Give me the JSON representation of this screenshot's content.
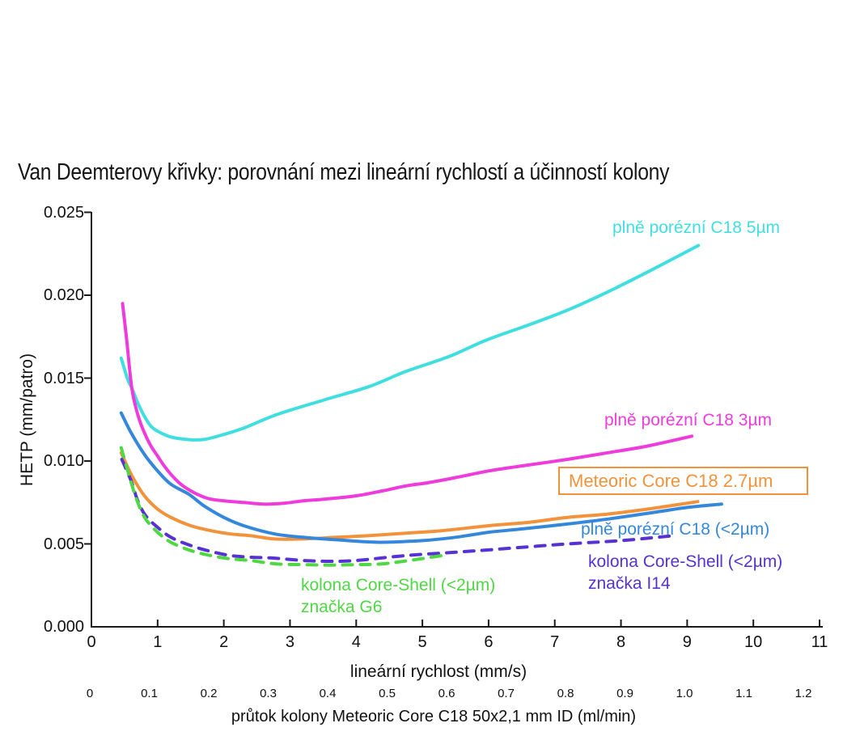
{
  "chart_data": {
    "type": "line",
    "title": "Van Deemterovy křivky: porovnání mezi lineární rychlostí a účinností kolony",
    "colors": {
      "axis": "#1a1a1a",
      "text": "#111111"
    },
    "x_axis": {
      "label": "lineární rychlost (mm/s)",
      "range": [
        0,
        11
      ],
      "ticks": [
        {
          "label": "0",
          "value": 0
        },
        {
          "label": "1",
          "value": 1
        },
        {
          "label": "2",
          "value": 2
        },
        {
          "label": "3",
          "value": 3
        },
        {
          "label": "4",
          "value": 4
        },
        {
          "label": "5",
          "value": 5
        },
        {
          "label": "6",
          "value": 6
        },
        {
          "label": "7",
          "value": 7
        },
        {
          "label": "8",
          "value": 8
        },
        {
          "label": "9",
          "value": 9
        },
        {
          "label": "10",
          "value": 10
        },
        {
          "label": "11",
          "value": 11
        }
      ]
    },
    "y_axis": {
      "label": "HETP (mm/patro)",
      "range": [
        0,
        0.025
      ],
      "ticks": [
        {
          "label": "0.000",
          "value": 0
        },
        {
          "label": "0.005",
          "value": 0.005
        },
        {
          "label": "0.010",
          "value": 0.01
        },
        {
          "label": "0.015",
          "value": 0.015
        },
        {
          "label": "0.020",
          "value": 0.02
        },
        {
          "label": "0.025",
          "value": 0.025
        }
      ]
    },
    "x2_axis": {
      "label": "průtok kolony Meteoric Core C18 50x2,1 mm ID (ml/min)",
      "range": [
        0,
        1.2
      ],
      "ticks": [
        {
          "label": "0",
          "value": 0
        },
        {
          "label": "0.1",
          "value": 0.1
        },
        {
          "label": "0.2",
          "value": 0.2
        },
        {
          "label": "0.3",
          "value": 0.3
        },
        {
          "label": "0.4",
          "value": 0.4
        },
        {
          "label": "0.5",
          "value": 0.5
        },
        {
          "label": "0.6",
          "value": 0.6
        },
        {
          "label": "0.7",
          "value": 0.7
        },
        {
          "label": "0.8",
          "value": 0.8
        },
        {
          "label": "0.9",
          "value": 0.9
        },
        {
          "label": "1.0",
          "value": 1.0
        },
        {
          "label": "1.1",
          "value": 1.1
        },
        {
          "label": "1.2",
          "value": 1.2
        }
      ]
    },
    "series": [
      {
        "id": "c18_5um",
        "name": "plně porézní C18 5µm",
        "color": "#41DEE0",
        "dash": false,
        "points": [
          [
            0.45,
            0.0162
          ],
          [
            0.55,
            0.0149
          ],
          [
            0.61,
            0.0144
          ],
          [
            0.7,
            0.0135
          ],
          [
            0.8,
            0.0127
          ],
          [
            0.9,
            0.0121
          ],
          [
            1.0,
            0.0118
          ],
          [
            1.2,
            0.01145
          ],
          [
            1.45,
            0.0113
          ],
          [
            1.7,
            0.0113
          ],
          [
            2.0,
            0.0116
          ],
          [
            2.31,
            0.012
          ],
          [
            2.8,
            0.0128
          ],
          [
            3.53,
            0.0137
          ],
          [
            4.2,
            0.0145
          ],
          [
            4.75,
            0.0154
          ],
          [
            5.4,
            0.0163
          ],
          [
            5.97,
            0.0173
          ],
          [
            6.6,
            0.0182
          ],
          [
            7.19,
            0.0191
          ],
          [
            7.8,
            0.0202
          ],
          [
            8.5,
            0.0216
          ],
          [
            9.17,
            0.023
          ]
        ]
      },
      {
        "id": "c18_3um",
        "name": "plně porézní C18 3µm",
        "color": "#EF3BDB",
        "dash": false,
        "points": [
          [
            0.47,
            0.0195
          ],
          [
            0.53,
            0.0174
          ],
          [
            0.61,
            0.0144
          ],
          [
            0.7,
            0.0128
          ],
          [
            0.8,
            0.0117
          ],
          [
            0.9,
            0.0109
          ],
          [
            1.0,
            0.0103
          ],
          [
            1.1,
            0.0097
          ],
          [
            1.2,
            0.0092
          ],
          [
            1.35,
            0.0086
          ],
          [
            1.5,
            0.0082
          ],
          [
            1.65,
            0.0079
          ],
          [
            1.8,
            0.0077
          ],
          [
            2.0,
            0.0076
          ],
          [
            2.3,
            0.0075
          ],
          [
            2.6,
            0.0074
          ],
          [
            2.9,
            0.00745
          ],
          [
            3.2,
            0.0076
          ],
          [
            3.53,
            0.0077
          ],
          [
            4.0,
            0.0079
          ],
          [
            4.4,
            0.0082
          ],
          [
            4.75,
            0.0085
          ],
          [
            5.1,
            0.0087
          ],
          [
            5.5,
            0.009
          ],
          [
            6.0,
            0.0094
          ],
          [
            6.5,
            0.0097
          ],
          [
            7.19,
            0.0101
          ],
          [
            7.8,
            0.0105
          ],
          [
            8.4,
            0.0109
          ],
          [
            9.07,
            0.0115
          ]
        ]
      },
      {
        "id": "meteoric_core",
        "name": "Meteoric Core C18 2.7µm",
        "color": "#F2923B",
        "dash": false,
        "points": [
          [
            0.45,
            0.0105
          ],
          [
            0.6,
            0.0092
          ],
          [
            0.8,
            0.0079
          ],
          [
            1.0,
            0.0071
          ],
          [
            1.2,
            0.0066
          ],
          [
            1.5,
            0.0061
          ],
          [
            1.8,
            0.0058
          ],
          [
            2.1,
            0.0056
          ],
          [
            2.4,
            0.0055
          ],
          [
            2.77,
            0.0053
          ],
          [
            3.2,
            0.0053
          ],
          [
            3.7,
            0.0054
          ],
          [
            4.2,
            0.0055
          ],
          [
            4.75,
            0.00565
          ],
          [
            5.3,
            0.0058
          ],
          [
            6.0,
            0.0061
          ],
          [
            6.6,
            0.0063
          ],
          [
            7.19,
            0.0066
          ],
          [
            7.8,
            0.0068
          ],
          [
            8.4,
            0.0071
          ],
          [
            9.16,
            0.00755
          ]
        ]
      },
      {
        "id": "c18_sub2um",
        "name": "plně porézní C18 (<2µm)",
        "color": "#3487DB",
        "dash": false,
        "points": [
          [
            0.45,
            0.0129
          ],
          [
            0.6,
            0.0117
          ],
          [
            0.8,
            0.0104
          ],
          [
            1.0,
            0.0094
          ],
          [
            1.2,
            0.0086
          ],
          [
            1.47,
            0.008
          ],
          [
            1.7,
            0.0073
          ],
          [
            2.0,
            0.0066
          ],
          [
            2.3,
            0.0061
          ],
          [
            2.77,
            0.0056
          ],
          [
            3.2,
            0.0054
          ],
          [
            3.7,
            0.00525
          ],
          [
            4.35,
            0.0051
          ],
          [
            5.0,
            0.0052
          ],
          [
            5.5,
            0.0054
          ],
          [
            6.0,
            0.0057
          ],
          [
            6.5,
            0.0059
          ],
          [
            7.19,
            0.0062
          ],
          [
            7.8,
            0.0065
          ],
          [
            8.5,
            0.0069
          ],
          [
            9.0,
            0.0072
          ],
          [
            9.52,
            0.0074
          ]
        ]
      },
      {
        "id": "core_shell_i14",
        "name": "kolona Core-Shell (<2µm) značka I14",
        "color": "#5732D2",
        "dash": true,
        "points": [
          [
            0.46,
            0.0101
          ],
          [
            0.6,
            0.0088
          ],
          [
            0.7,
            0.0076
          ],
          [
            0.82,
            0.0067
          ],
          [
            1.0,
            0.006
          ],
          [
            1.2,
            0.0054
          ],
          [
            1.5,
            0.0049
          ],
          [
            1.8,
            0.00455
          ],
          [
            2.1,
            0.0043
          ],
          [
            2.4,
            0.0042
          ],
          [
            2.77,
            0.00414
          ],
          [
            3.2,
            0.004
          ],
          [
            3.6,
            0.00395
          ],
          [
            4.0,
            0.004
          ],
          [
            4.75,
            0.0043
          ],
          [
            5.5,
            0.0045
          ],
          [
            6.2,
            0.0047
          ],
          [
            7.19,
            0.005
          ],
          [
            8.0,
            0.0052
          ],
          [
            8.8,
            0.0055
          ]
        ]
      },
      {
        "id": "core_shell_g6",
        "name": "kolona Core-Shell (<2µm) značka G6",
        "color": "#4FD844",
        "dash": true,
        "points": [
          [
            0.45,
            0.0108
          ],
          [
            0.6,
            0.0087
          ],
          [
            0.7,
            0.0075
          ],
          [
            0.82,
            0.0065
          ],
          [
            1.0,
            0.0057
          ],
          [
            1.2,
            0.0051
          ],
          [
            1.5,
            0.0046
          ],
          [
            1.8,
            0.0043
          ],
          [
            2.1,
            0.0041
          ],
          [
            2.4,
            0.004
          ],
          [
            2.77,
            0.0038
          ],
          [
            3.2,
            0.00375
          ],
          [
            3.6,
            0.00372
          ],
          [
            4.0,
            0.00375
          ],
          [
            4.4,
            0.0038
          ],
          [
            4.8,
            0.004
          ],
          [
            5.3,
            0.0043
          ]
        ]
      }
    ],
    "annotations": {
      "label_5um": "plně porézní C18 5µm",
      "label_3um": "plně porézní C18 3µm",
      "label_meteoric": "Meteoric Core C18 2.7µm",
      "label_sub2": "plně porézní C18 (<2µm)",
      "label_i14_line1": "kolona Core-Shell (<2µm)",
      "label_i14_line2": "značka I14",
      "label_g6_line1": "kolona Core-Shell (<2µm)",
      "label_g6_line2": "značka G6"
    },
    "legend_position": "inline-labels",
    "grid": false
  }
}
